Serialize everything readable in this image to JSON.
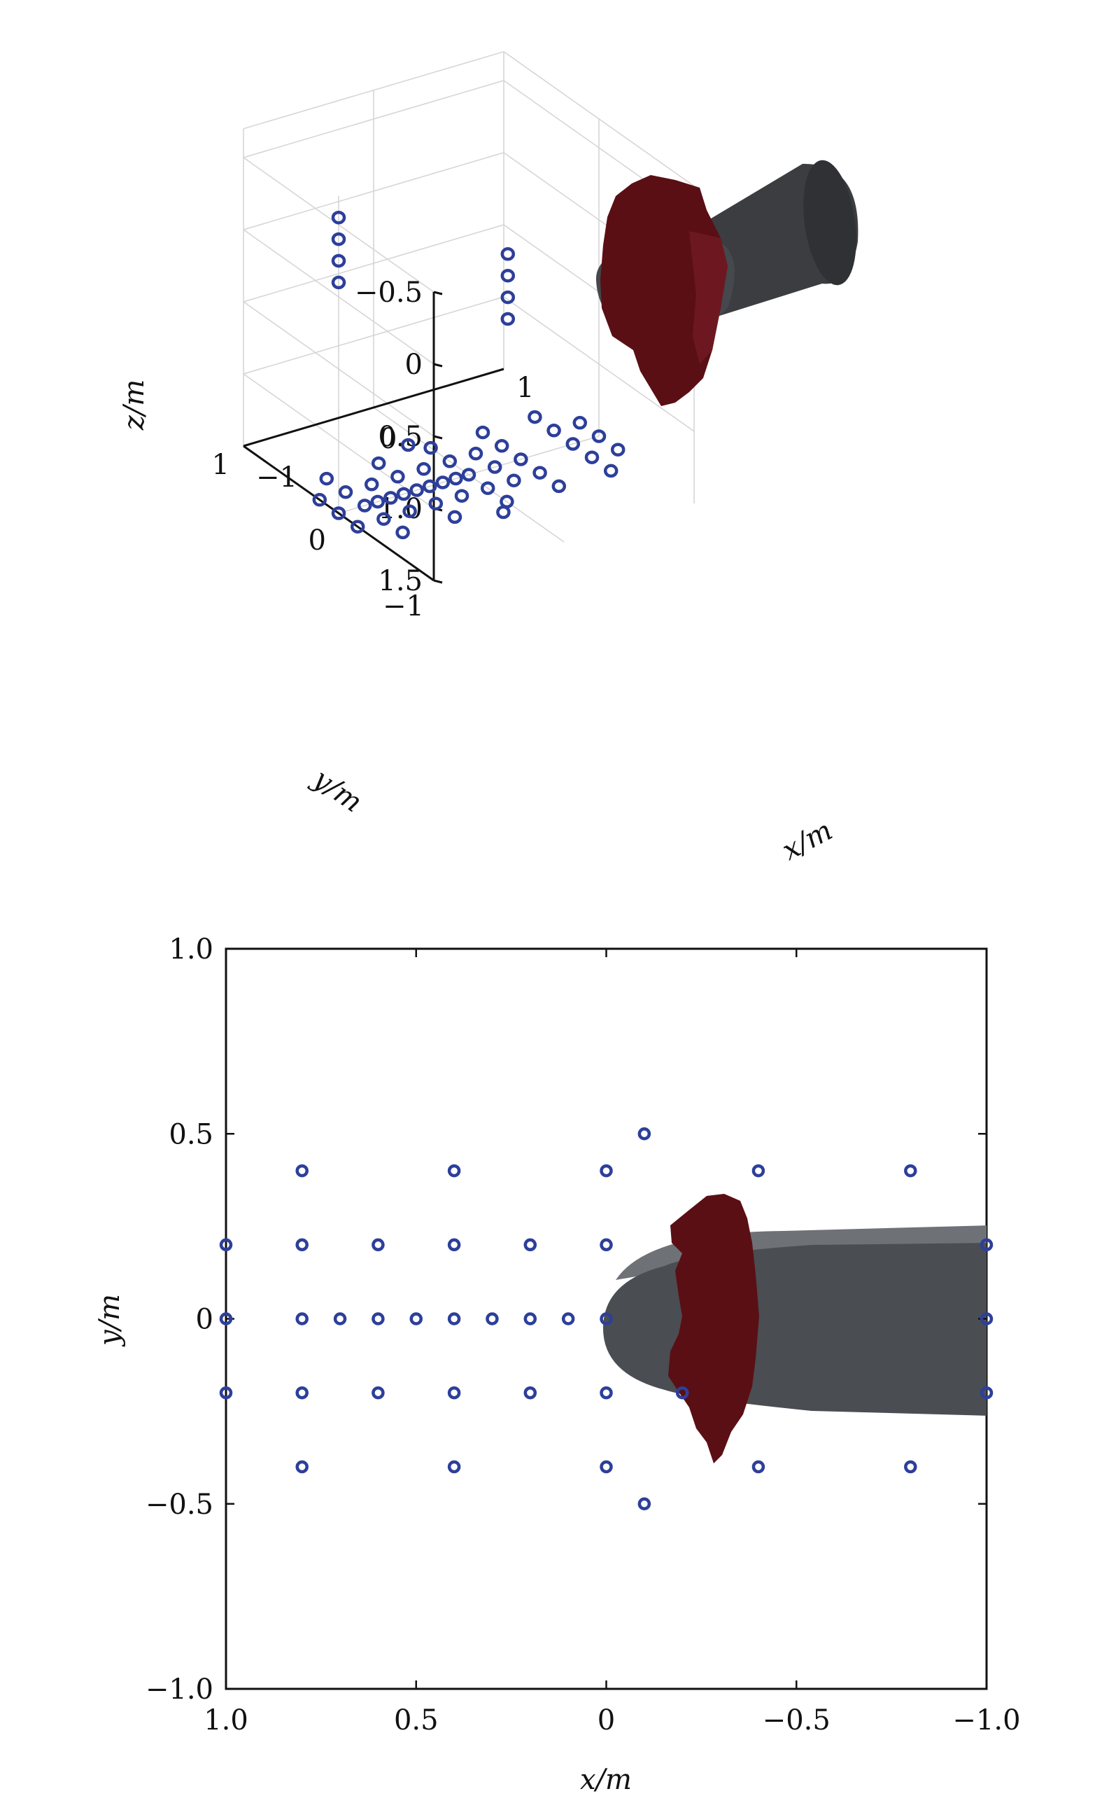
{
  "chart_data": [
    {
      "type": "scatter",
      "view": "3d",
      "title": "",
      "xlabel": "x/m",
      "ylabel": "y/m",
      "zlabel": "z/m",
      "xlim": [
        -1,
        1
      ],
      "ylim": [
        -1,
        1
      ],
      "zlim": [
        -0.5,
        1.5
      ],
      "z_direction": "reversed",
      "x_ticks": [
        "−1",
        "0",
        "1"
      ],
      "y_ticks": [
        "−1",
        "0",
        "1"
      ],
      "z_ticks": [
        "−0.5",
        "0",
        "0.5",
        "1.0",
        "1.5"
      ],
      "marker_color": "#2d3f9a",
      "body_color": "#3b3d41",
      "cloud_color": "#5a0f14",
      "series": [
        {
          "values": [
            {
              "x": -0.8,
              "y": 0.4,
              "z": 1.5
            },
            {
              "x": -0.4,
              "y": 0.4,
              "z": 1.5
            },
            {
              "x": 0,
              "y": 0.4,
              "z": 1.5
            },
            {
              "x": 0.4,
              "y": 0.4,
              "z": 1.5
            },
            {
              "x": 0.8,
              "y": 0.4,
              "z": 1.5
            },
            {
              "x": -1.0,
              "y": 0.2,
              "z": 1.5
            },
            {
              "x": -0.8,
              "y": 0.2,
              "z": 1.5
            },
            {
              "x": -0.6,
              "y": 0.2,
              "z": 1.5
            },
            {
              "x": -0.4,
              "y": 0.2,
              "z": 1.5
            },
            {
              "x": -0.2,
              "y": 0.2,
              "z": 1.5
            },
            {
              "x": 0,
              "y": 0.2,
              "z": 1.5
            },
            {
              "x": 0.2,
              "y": 0.2,
              "z": 1.5
            },
            {
              "x": 0.4,
              "y": 0.2,
              "z": 1.5
            },
            {
              "x": 0.8,
              "y": 0.2,
              "z": 1.5
            },
            {
              "x": 1.0,
              "y": 0.2,
              "z": 1.5
            },
            {
              "x": -1.0,
              "y": 0,
              "z": 1.5
            },
            {
              "x": -0.8,
              "y": 0,
              "z": 1.5
            },
            {
              "x": -0.7,
              "y": 0,
              "z": 1.5
            },
            {
              "x": -0.6,
              "y": 0,
              "z": 1.5
            },
            {
              "x": -0.5,
              "y": 0,
              "z": 1.5
            },
            {
              "x": -0.4,
              "y": 0,
              "z": 1.5
            },
            {
              "x": -0.3,
              "y": 0,
              "z": 1.5
            },
            {
              "x": -0.2,
              "y": 0,
              "z": 1.5
            },
            {
              "x": -0.1,
              "y": 0,
              "z": 1.5
            },
            {
              "x": 0,
              "y": 0,
              "z": 1.5
            },
            {
              "x": 0.2,
              "y": 0,
              "z": 1.5
            },
            {
              "x": 0.4,
              "y": 0,
              "z": 1.5
            },
            {
              "x": 0.8,
              "y": 0,
              "z": 1.5
            },
            {
              "x": 1.0,
              "y": 0,
              "z": 1.5
            },
            {
              "x": -1.0,
              "y": -0.2,
              "z": 1.5
            },
            {
              "x": -0.8,
              "y": -0.2,
              "z": 1.5
            },
            {
              "x": -0.6,
              "y": -0.2,
              "z": 1.5
            },
            {
              "x": -0.4,
              "y": -0.2,
              "z": 1.5
            },
            {
              "x": -0.2,
              "y": -0.2,
              "z": 1.5
            },
            {
              "x": 0,
              "y": -0.2,
              "z": 1.5
            },
            {
              "x": 0.2,
              "y": -0.2,
              "z": 1.5
            },
            {
              "x": 0.4,
              "y": -0.2,
              "z": 1.5
            },
            {
              "x": 0.8,
              "y": -0.2,
              "z": 1.5
            },
            {
              "x": 1.0,
              "y": -0.2,
              "z": 1.5
            },
            {
              "x": -0.8,
              "y": -0.4,
              "z": 1.5
            },
            {
              "x": -0.4,
              "y": -0.4,
              "z": 1.5
            },
            {
              "x": 0,
              "y": -0.4,
              "z": 1.5
            },
            {
              "x": 0.4,
              "y": -0.4,
              "z": 1.5
            },
            {
              "x": 0.8,
              "y": -0.4,
              "z": 1.5
            },
            {
              "x": -0.1,
              "y": 0.5,
              "z": 1.5
            },
            {
              "x": -0.1,
              "y": -0.5,
              "z": 1.5
            },
            {
              "x": -1.0,
              "y": 0,
              "z": -0.55
            },
            {
              "x": -1.0,
              "y": 0,
              "z": -0.4
            },
            {
              "x": -1.0,
              "y": 0,
              "z": -0.25
            },
            {
              "x": -1.0,
              "y": 0,
              "z": -0.1
            },
            {
              "x": 0.3,
              "y": 0,
              "z": 0.05
            },
            {
              "x": 0.3,
              "y": 0,
              "z": 0.2
            },
            {
              "x": 0.3,
              "y": 0,
              "z": 0.35
            },
            {
              "x": 0.3,
              "y": 0,
              "z": 0.5
            }
          ]
        }
      ]
    },
    {
      "type": "scatter",
      "view": "top",
      "title": "",
      "xlabel": "x/m",
      "ylabel": "y/m",
      "xlim": [
        1.0,
        -1.0
      ],
      "ylim": [
        -1.0,
        1.0
      ],
      "x_ticks": [
        "1.0",
        "0.5",
        "0",
        "−0.5",
        "−1.0"
      ],
      "y_ticks": [
        "−1.0",
        "−0.5",
        "0",
        "0.5",
        "1.0"
      ],
      "marker_color": "#2d3f9a",
      "body_color": "#4a4d52",
      "cloud_color": "#5a0f14",
      "series": [
        {
          "values": [
            {
              "x": 0.8,
              "y": 0.4
            },
            {
              "x": 0.4,
              "y": 0.4
            },
            {
              "x": 0,
              "y": 0.4
            },
            {
              "x": -0.4,
              "y": 0.4
            },
            {
              "x": -0.8,
              "y": 0.4
            },
            {
              "x": 1.0,
              "y": 0.2
            },
            {
              "x": 0.8,
              "y": 0.2
            },
            {
              "x": 0.6,
              "y": 0.2
            },
            {
              "x": 0.4,
              "y": 0.2
            },
            {
              "x": 0.2,
              "y": 0.2
            },
            {
              "x": 0,
              "y": 0.2
            },
            {
              "x": -1.0,
              "y": 0.2
            },
            {
              "x": 1.0,
              "y": 0
            },
            {
              "x": 0.8,
              "y": 0
            },
            {
              "x": 0.7,
              "y": 0
            },
            {
              "x": 0.6,
              "y": 0
            },
            {
              "x": 0.5,
              "y": 0
            },
            {
              "x": 0.4,
              "y": 0
            },
            {
              "x": 0.3,
              "y": 0
            },
            {
              "x": 0.2,
              "y": 0
            },
            {
              "x": 0.1,
              "y": 0
            },
            {
              "x": 0,
              "y": 0
            },
            {
              "x": -1.0,
              "y": 0
            },
            {
              "x": 1.0,
              "y": -0.2
            },
            {
              "x": 0.8,
              "y": -0.2
            },
            {
              "x": 0.6,
              "y": -0.2
            },
            {
              "x": 0.4,
              "y": -0.2
            },
            {
              "x": 0.2,
              "y": -0.2
            },
            {
              "x": 0,
              "y": -0.2
            },
            {
              "x": -0.2,
              "y": -0.2
            },
            {
              "x": -1.0,
              "y": -0.2
            },
            {
              "x": 0.8,
              "y": -0.4
            },
            {
              "x": 0.4,
              "y": -0.4
            },
            {
              "x": 0,
              "y": -0.4
            },
            {
              "x": -0.4,
              "y": -0.4
            },
            {
              "x": -0.8,
              "y": -0.4
            },
            {
              "x": -0.1,
              "y": 0.5
            },
            {
              "x": -0.1,
              "y": -0.5
            }
          ]
        }
      ]
    }
  ]
}
